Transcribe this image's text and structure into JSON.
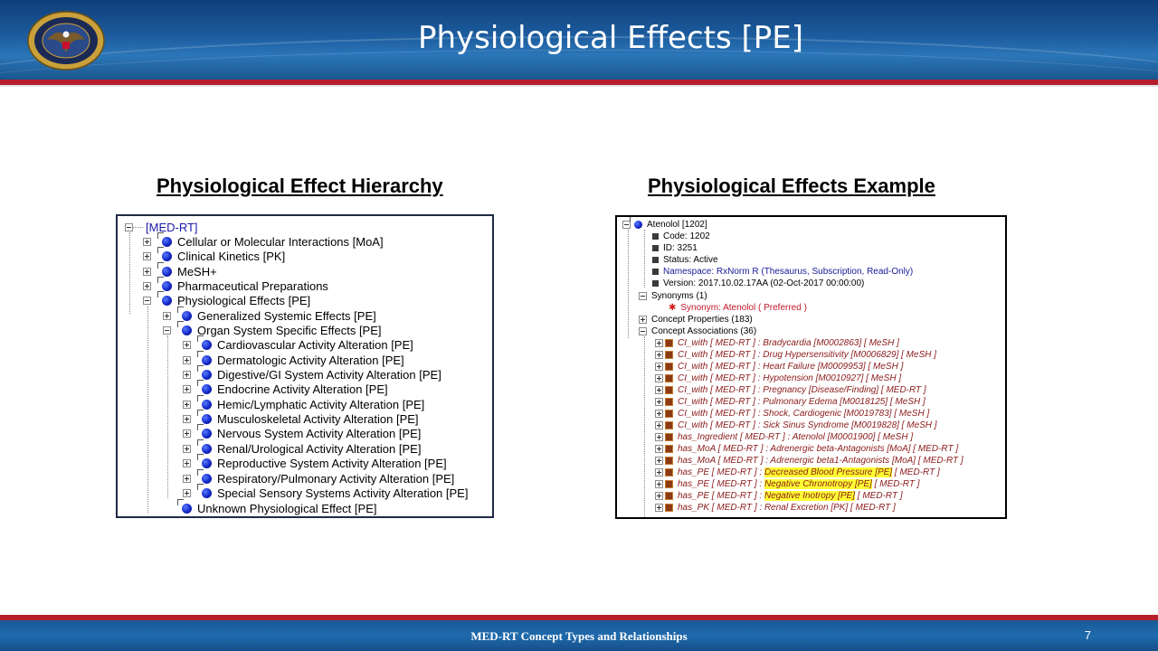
{
  "slide": {
    "title": "Physiological Effects [PE]",
    "footer": "MED-RT  Concept Types and Relationships",
    "page_number": "7"
  },
  "left": {
    "heading": "Physiological Effect Hierarchy",
    "root": "[MED-RT]",
    "top_nodes": [
      "Cellular or Molecular Interactions [MoA]",
      "Clinical Kinetics [PK]",
      "MeSH+",
      "Pharmaceutical Preparations",
      "Physiological Effects [PE]"
    ],
    "pe_children": [
      "Generalized Systemic Effects [PE]",
      "Organ System Specific Effects [PE]"
    ],
    "organ_children": [
      "Cardiovascular Activity Alteration [PE]",
      "Dermatologic Activity Alteration [PE]",
      "Digestive/GI System Activity Alteration [PE]",
      "Endocrine Activity Alteration [PE]",
      "Hemic/Lymphatic Activity Alteration [PE]",
      "Musculoskeletal Activity Alteration [PE]",
      "Nervous System Activity Alteration [PE]",
      "Renal/Urological Activity Alteration [PE]",
      "Reproductive System Activity Alteration [PE]",
      "Respiratory/Pulmonary Activity Alteration [PE]",
      "Special Sensory Systems Activity Alteration [PE]"
    ],
    "unknown": "Unknown Physiological Effect [PE]"
  },
  "right": {
    "heading": "Physiological Effects Example",
    "root": "Atenolol [1202]",
    "props": [
      "Code: 1202",
      "ID: 3251",
      "Status: Active",
      "Namespace: RxNorm R (Thesaurus, Subscription, Read-Only)",
      "Version: 2017.10.02.17AA (02-Oct-2017 00:00:00)"
    ],
    "synonyms_label": "Synonyms (1)",
    "synonym": "Synonym: Atenolol ( Preferred )",
    "concept_properties": "Concept Properties (183)",
    "concept_associations": "Concept Associations (36)",
    "associations": [
      "CI_with [ MED-RT ] : Bradycardia [M0002863] [ MeSH ]",
      "CI_with [ MED-RT ] : Drug Hypersensitivity [M0006829] [ MeSH ]",
      "CI_with [ MED-RT ] : Heart Failure [M0009953] [ MeSH ]",
      "CI_with [ MED-RT ] : Hypotension [M0010927] [ MeSH ]",
      "CI_with [ MED-RT ] : Pregnancy [Disease/Finding] [ MED-RT ]",
      "CI_with [ MED-RT ] : Pulmonary Edema [M0018125] [ MeSH ]",
      "CI_with [ MED-RT ] : Shock, Cardiogenic [M0019783] [ MeSH ]",
      "CI_with [ MED-RT ] : Sick Sinus Syndrome [M0019828] [ MeSH ]",
      "has_Ingredient [ MED-RT ] : Atenolol [M0001900] [ MeSH ]",
      "has_MoA [ MED-RT ] : Adrenergic beta-Antagonists [MoA] [ MED-RT ]",
      "has_MoA [ MED-RT ] : Adrenergic beta1-Antagonists [MoA] [ MED-RT ]"
    ],
    "pe_assoc": [
      {
        "prefix": "has_PE [ MED-RT ] : ",
        "highlight": "Decreased Blood Pressure [PE]",
        "suffix": " [ MED-RT ]"
      },
      {
        "prefix": "has_PE [ MED-RT ] : ",
        "highlight": "Negative Chronotropy [PE]",
        "suffix": " [ MED-RT ]"
      },
      {
        "prefix": "has_PE [ MED-RT ] : ",
        "highlight": "Negative Inotropy [PE]",
        "suffix": " [ MED-RT ]"
      }
    ],
    "last_assoc": "has_PK [ MED-RT ] : Renal Excretion [PK] [ MED-RT ]"
  }
}
